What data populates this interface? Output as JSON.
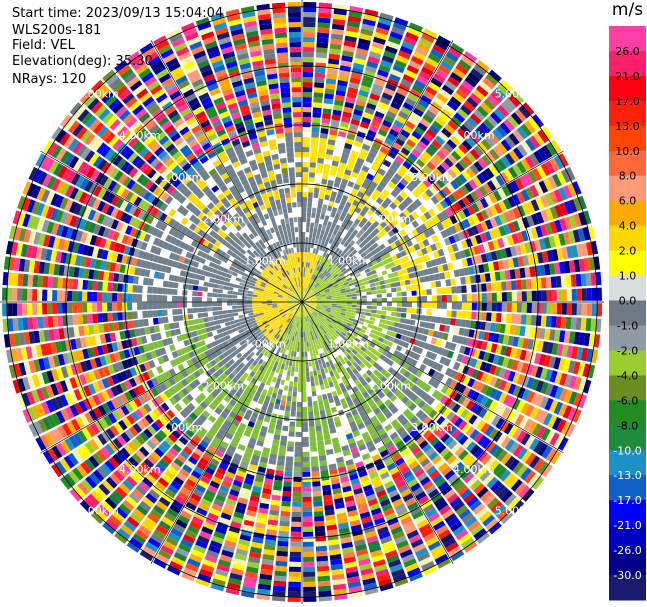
{
  "header": {
    "start_time": "Start time: 2023/09/13 15:04:04",
    "instrument": "WLS200s-181",
    "field": "Field: VEL",
    "elevation": "Elevation(deg): 35.30",
    "nrays": "NRays: 120"
  },
  "colorbar": {
    "unit": "m/s",
    "ticks": [
      "26.0",
      "21.0",
      "17.0",
      "13.0",
      "10.0",
      "8.0",
      "6.0",
      "4.0",
      "2.0",
      "1.0",
      "0.0",
      "-1.0",
      "-2.0",
      "-4.0",
      "-6.0",
      "-8.0",
      "-10.0",
      "-13.0",
      "-17.0",
      "-21.0",
      "-26.0",
      "-30.0"
    ],
    "colors": [
      "#ff3fa6",
      "#ff1f6a",
      "#e8000c",
      "#ff1a0d",
      "#ff4a1a",
      "#ff7a4a",
      "#ff9a7a",
      "#ffaa00",
      "#ffd800",
      "#ffff00",
      "#f4f4b0",
      "#707a84",
      "#909aa4",
      "#9acd32",
      "#6b8e23",
      "#228b22",
      "#1e7b3c",
      "#1e90c8",
      "#1060c8",
      "#0000ff",
      "#0000c0",
      "#00008b",
      "#000060",
      "#1a1a6e"
    ]
  },
  "chart_data": {
    "type": "ppi",
    "title": "",
    "field": "VEL",
    "elevation_deg": 35.3,
    "nrays": 120,
    "range_rings_km": [
      "1.00km",
      "2.00km",
      "3.00km",
      "4.00km",
      "5.00km"
    ],
    "color_scale_ms": [
      26.0,
      21.0,
      17.0,
      13.0,
      10.0,
      8.0,
      6.0,
      4.0,
      2.0,
      1.0,
      0.0,
      -1.0,
      -2.0,
      -4.0,
      -6.0,
      -8.0,
      -10.0,
      -13.0,
      -17.0,
      -21.0,
      -26.0,
      -30.0
    ],
    "regions": [
      {
        "range_km": [
          0,
          0.8
        ],
        "velocity_ms": "-2 to 2",
        "note": "yellow / green mix near center"
      },
      {
        "range_km": [
          0.8,
          1.7
        ],
        "velocity_ms": "0 to -1",
        "note": "grey low velocity, green on east/south"
      },
      {
        "range_km": [
          1.7,
          2.8
        ],
        "velocity_ms": "0 (grey), 2 to 4 in north-east",
        "note": "patchy yellow north-east, green south-west"
      },
      {
        "range_km": [
          2.8,
          5.7
        ],
        "velocity_ms": "noise -30 to 26",
        "note": "random noise all colours"
      }
    ]
  }
}
